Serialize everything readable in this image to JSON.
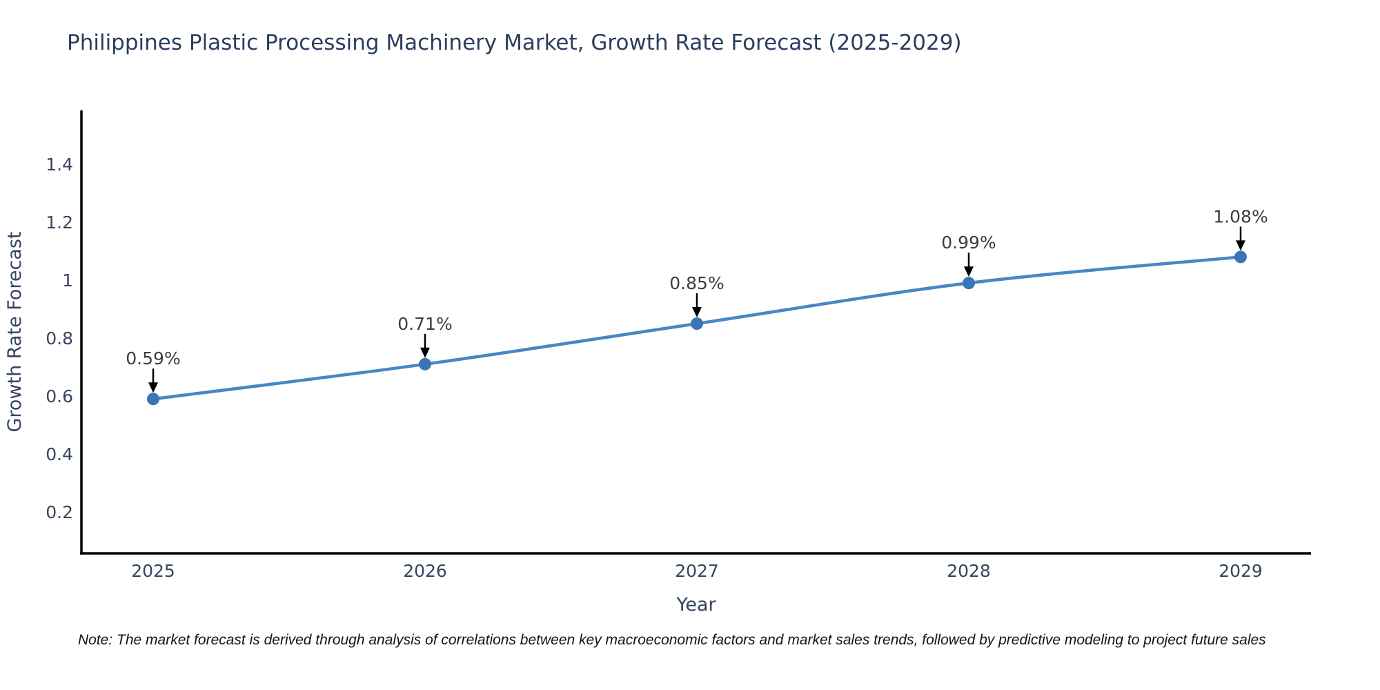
{
  "chart_data": {
    "type": "line",
    "title": "Philippines Plastic Processing Machinery Market, Growth Rate Forecast (2025-2029)",
    "x": [
      "2025",
      "2026",
      "2027",
      "2028",
      "2029"
    ],
    "values": [
      0.59,
      0.71,
      0.85,
      0.99,
      1.08
    ],
    "point_labels": [
      "0.59%",
      "0.71%",
      "0.85%",
      "0.99%",
      "1.08%"
    ],
    "xlabel": "Year",
    "ylabel": "Growth Rate Forecast",
    "yticks": [
      0.2,
      0.4,
      0.6,
      0.8,
      1,
      1.2,
      1.4
    ],
    "ylim": [
      0.06,
      1.59
    ],
    "xlim": [
      2024.74,
      2029.26
    ],
    "grid": false,
    "legend": "none",
    "annotations": "each point labeled with percent value and a small black down-arrow pointing at the marker"
  },
  "note": "Note: The market forecast is derived through analysis of correlations between key macroeconomic factors and market sales trends, followed by predictive modeling to project future sales",
  "colors": {
    "title": "#2b3e5f",
    "tick": "#36445f",
    "annotation": "#3d3d3d",
    "note": "#141414",
    "axis": "#000000",
    "line": "#4a86c4",
    "marker": "#3a76b7",
    "arrow": "#000000"
  }
}
